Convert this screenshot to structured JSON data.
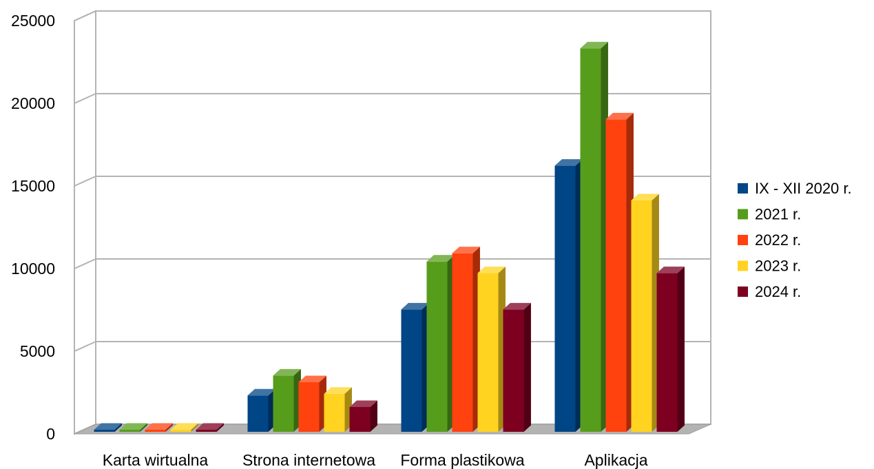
{
  "chart_data": {
    "type": "bar",
    "style": "3d-clustered-column",
    "title": "",
    "xlabel": "",
    "ylabel": "",
    "ylim": [
      0,
      25000
    ],
    "yticks": [
      0,
      5000,
      10000,
      15000,
      20000,
      25000
    ],
    "ytick_labels": [
      "0",
      "5000",
      "10000",
      "15000",
      "20000",
      "25000"
    ],
    "grid": true,
    "legend_position": "right",
    "categories": [
      "Karta wirtualna",
      "Strona internetowa",
      "Forma plastikowa",
      "Aplikacja"
    ],
    "series": [
      {
        "name": "IX - XII 2020 r.",
        "color": "#004586",
        "values": [
          0,
          2200,
          7400,
          16100
        ]
      },
      {
        "name": "2021 r.",
        "color": "#579d1c",
        "values": [
          0,
          3400,
          10300,
          23200
        ]
      },
      {
        "name": "2022 r.",
        "color": "#ff420e",
        "values": [
          0,
          3000,
          10800,
          18900
        ]
      },
      {
        "name": "2023 r.",
        "color": "#ffd320",
        "values": [
          0,
          2300,
          9600,
          14000
        ]
      },
      {
        "name": "2024 r.",
        "color": "#7e0021",
        "values": [
          0,
          1500,
          7400,
          9600
        ]
      }
    ]
  }
}
